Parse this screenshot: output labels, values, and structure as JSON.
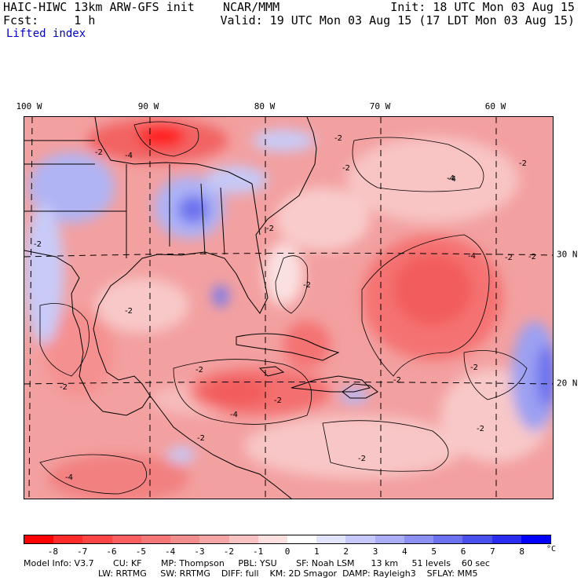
{
  "header": {
    "line1_left": "HAIC-HIWC 13km ARW-GFS init    NCAR/MMM",
    "line1_right": "Init: 18 UTC Mon 03 Aug 15",
    "line2_left": "Fcst:     1 h",
    "line2_right": "Valid: 19 UTC Mon 03 Aug 15 (17 LDT Mon 03 Aug 15)",
    "field": "Lifted index"
  },
  "map": {
    "lon_labels": [
      "100 W",
      "90 W",
      "80 W",
      "70 W",
      "60 W"
    ],
    "lat_labels": [
      "30 N",
      "20 N"
    ],
    "contour_labels": [
      "-2",
      "-4",
      "-2",
      "-2",
      "-4",
      "-2",
      "-2",
      "-2",
      "-2",
      "-4",
      "-2",
      "-2",
      "-2",
      "-2",
      "-2",
      "-4",
      "-2",
      "-2",
      "-4",
      "-2",
      "-2",
      "-4",
      "-2",
      "-2"
    ]
  },
  "colorbar": {
    "labels": [
      "-8",
      "-7",
      "-6",
      "-5",
      "-4",
      "-3",
      "-2",
      "-1",
      "0",
      "1",
      "2",
      "3",
      "4",
      "5",
      "6",
      "7",
      "8"
    ],
    "unit": "°C",
    "colors": [
      "#ff0000",
      "#ff2a2a",
      "#fd4646",
      "#f86060",
      "#f47676",
      "#f28d8d",
      "#f4a6a6",
      "#f8c2c2",
      "#fce0e0",
      "#ffffff",
      "#e2e4fc",
      "#c6c8fa",
      "#aaaef6",
      "#8c90f2",
      "#6c72f0",
      "#4a50ee",
      "#2a2cf0",
      "#0000ff"
    ]
  },
  "footer": {
    "line1": "Model Info: V3.7       CU: KF       MP: Thompson     PBL: YSU       SF: Noah LSM      13 km     51 levels    60 sec",
    "line2": "LW: RRTMG     SW: RRTMG    DIFF: full    KM: 2D Smagor  DAMP: Rayleigh3    SFLAY: MM5"
  }
}
